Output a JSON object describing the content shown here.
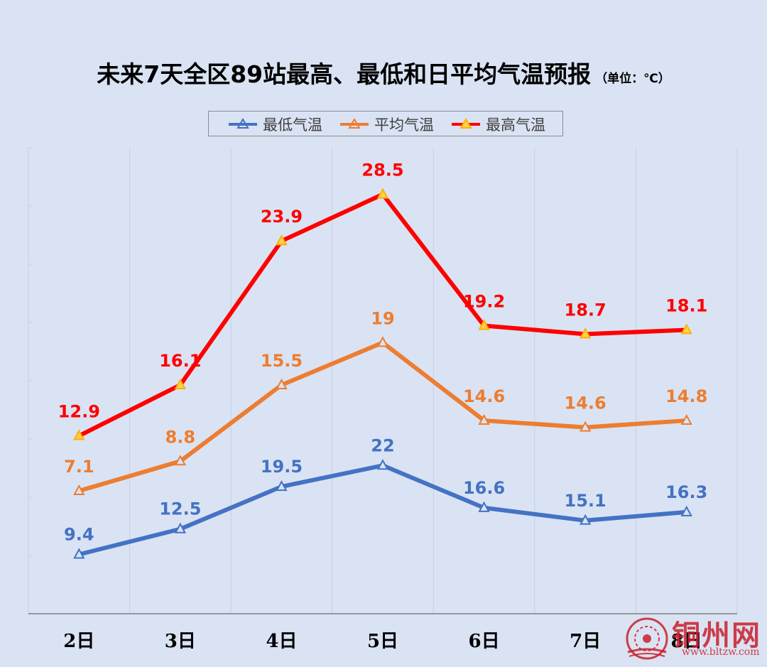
{
  "title": "未来7天全区89站最高、最低和日平均气温预报",
  "unit_note": "（单位：℃）",
  "watermark": {
    "name": "铜州网",
    "url": "www.bltzw.com",
    "color": "#c9202a"
  },
  "chart_data": {
    "type": "line",
    "title": "未来7天全区89站最高、最低和日平均气温预报",
    "categories": [
      "2日",
      "3日",
      "4日",
      "5日",
      "6日",
      "7日",
      "8日"
    ],
    "series": [
      {
        "name": "最低气温",
        "color": "#4472c4",
        "values": [
          9.4,
          12.5,
          19.5,
          22,
          16.6,
          15.1,
          16.3
        ],
        "plot_values": [
          2.0,
          5.0,
          10.0,
          12.5,
          7.5,
          6.0,
          7.0
        ],
        "labels": [
          "9.4",
          "12.5",
          "19.5",
          "22",
          "16.6",
          "15.1",
          "16.3"
        ]
      },
      {
        "name": "平均气温",
        "color": "#ed7d31",
        "values": [
          7.1,
          8.8,
          15.5,
          19,
          14.6,
          14.6,
          14.8
        ],
        "plot_values": [
          9.5,
          13.0,
          22.0,
          27.0,
          17.8,
          17.0,
          17.8
        ],
        "labels": [
          "7.1",
          "8.8",
          "15.5",
          "19",
          "14.6",
          "14.6",
          "14.8"
        ]
      },
      {
        "name": "最高气温",
        "color": "#ff0000",
        "values": [
          12.9,
          16.1,
          23.9,
          28.5,
          19.2,
          18.7,
          18.1
        ],
        "plot_values": [
          16.0,
          22.0,
          39.0,
          44.5,
          29.0,
          28.0,
          28.5
        ],
        "labels": [
          "12.9",
          "16.1",
          "23.9",
          "28.5",
          "19.2",
          "18.7",
          "18.1"
        ]
      }
    ],
    "ylim": [
      -5,
      50
    ],
    "legend": "top-center",
    "grid": "vertical"
  }
}
